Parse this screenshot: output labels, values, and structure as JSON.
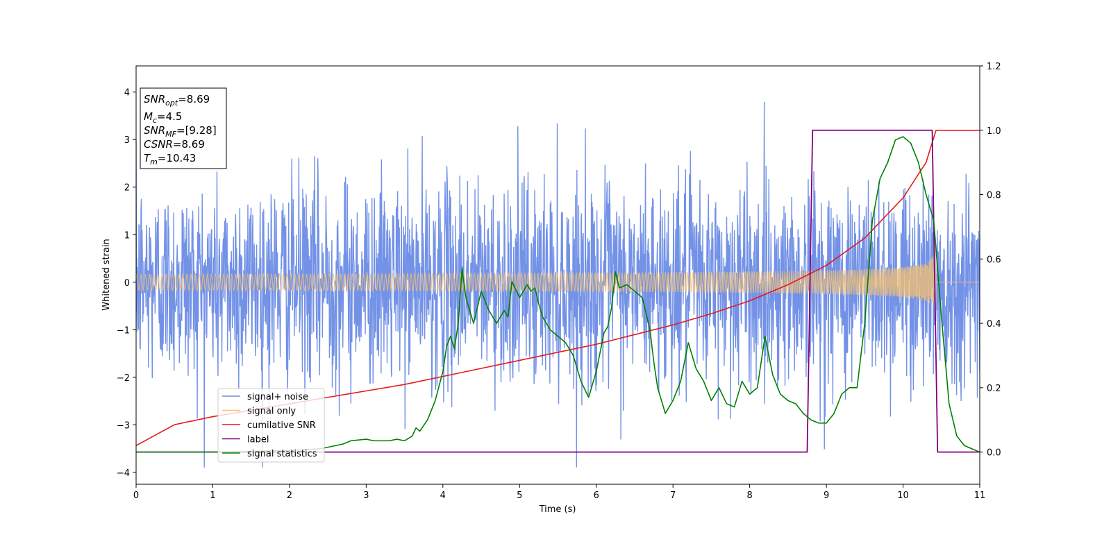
{
  "chart_data": {
    "type": "line",
    "xlabel": "Time (s)",
    "ylabel": "Whitened strain",
    "ylabel_right": "",
    "xlim": [
      0,
      11
    ],
    "ylim_left": [
      -4.25,
      4.55
    ],
    "ylim_right": [
      -0.1,
      1.2
    ],
    "xticks": [
      "0",
      "1",
      "2",
      "3",
      "4",
      "5",
      "6",
      "7",
      "8",
      "9",
      "10",
      "11"
    ],
    "yticks_left": [
      "−4",
      "−3",
      "−2",
      "−1",
      "0",
      "1",
      "2",
      "3",
      "4"
    ],
    "yticks_right": [
      "0.0",
      "0.2",
      "0.4",
      "0.6",
      "0.8",
      "1.0",
      "1.2"
    ],
    "grid": false,
    "legend_placement": "lower-left",
    "info_box": {
      "line1": "=8.69",
      "snr_opt_value": "8.69",
      "mc_value": "4.5",
      "snr_mf_value": "[9.28]",
      "csnr_value": "8.69",
      "tm_value": "10.43"
    },
    "series": [
      {
        "name": "signal+ noise",
        "color": "#6c8ce6",
        "axis": "left",
        "kind": "noise",
        "std": 1.05,
        "x_range": [
          0,
          11
        ],
        "approx_range": [
          -3.9,
          4.15
        ]
      },
      {
        "name": "signal only",
        "color": "#f5c070",
        "axis": "left",
        "kind": "chirp",
        "merger_time": 10.43,
        "start_amplitude": 0.04,
        "peak_amplitude": 0.95
      },
      {
        "name": "cumilative SNR",
        "color": "#e41a1c",
        "axis": "right",
        "x": [
          0,
          0.5,
          1,
          1.5,
          2,
          2.5,
          3,
          3.5,
          4,
          4.5,
          5,
          5.5,
          6,
          6.5,
          7,
          7.5,
          8,
          8.5,
          9,
          9.5,
          10,
          10.3,
          10.43,
          11
        ],
        "values": [
          0.02,
          0.085,
          0.11,
          0.13,
          0.15,
          0.17,
          0.19,
          0.21,
          0.235,
          0.26,
          0.285,
          0.31,
          0.335,
          0.365,
          0.395,
          0.43,
          0.47,
          0.52,
          0.58,
          0.665,
          0.79,
          0.9,
          1.0,
          1.0
        ]
      },
      {
        "name": "label",
        "color": "#800080",
        "axis": "right",
        "x": [
          0,
          8.75,
          8.82,
          10.38,
          10.45,
          11
        ],
        "values": [
          0,
          0,
          1,
          1,
          0,
          0
        ]
      },
      {
        "name": "signal statistics",
        "color": "#008000",
        "axis": "right",
        "x": [
          0,
          1,
          2,
          2.4,
          2.7,
          2.8,
          3.0,
          3.1,
          3.3,
          3.4,
          3.5,
          3.6,
          3.65,
          3.7,
          3.8,
          3.9,
          4.0,
          4.05,
          4.1,
          4.15,
          4.2,
          4.25,
          4.3,
          4.4,
          4.5,
          4.6,
          4.7,
          4.8,
          4.85,
          4.9,
          5.0,
          5.1,
          5.15,
          5.2,
          5.25,
          5.3,
          5.4,
          5.5,
          5.6,
          5.7,
          5.8,
          5.9,
          6.0,
          6.1,
          6.15,
          6.2,
          6.25,
          6.3,
          6.4,
          6.5,
          6.6,
          6.7,
          6.75,
          6.8,
          6.9,
          7.0,
          7.1,
          7.2,
          7.3,
          7.4,
          7.5,
          7.6,
          7.7,
          7.8,
          7.9,
          8.0,
          8.1,
          8.2,
          8.3,
          8.4,
          8.5,
          8.6,
          8.7,
          8.8,
          8.9,
          9.0,
          9.1,
          9.2,
          9.3,
          9.4,
          9.5,
          9.6,
          9.7,
          9.8,
          9.9,
          10.0,
          10.1,
          10.2,
          10.3,
          10.4,
          10.5,
          10.6,
          10.7,
          10.8,
          11
        ],
        "values": [
          0.0,
          0.0,
          0.005,
          0.01,
          0.025,
          0.035,
          0.04,
          0.035,
          0.035,
          0.04,
          0.035,
          0.05,
          0.075,
          0.065,
          0.1,
          0.16,
          0.25,
          0.33,
          0.36,
          0.32,
          0.4,
          0.57,
          0.48,
          0.4,
          0.5,
          0.44,
          0.4,
          0.44,
          0.42,
          0.53,
          0.48,
          0.52,
          0.5,
          0.51,
          0.46,
          0.42,
          0.38,
          0.36,
          0.34,
          0.3,
          0.22,
          0.17,
          0.25,
          0.37,
          0.39,
          0.45,
          0.56,
          0.51,
          0.52,
          0.5,
          0.48,
          0.38,
          0.28,
          0.2,
          0.12,
          0.16,
          0.22,
          0.34,
          0.26,
          0.22,
          0.16,
          0.2,
          0.15,
          0.14,
          0.22,
          0.18,
          0.2,
          0.36,
          0.24,
          0.18,
          0.16,
          0.15,
          0.12,
          0.1,
          0.09,
          0.09,
          0.12,
          0.18,
          0.2,
          0.2,
          0.4,
          0.72,
          0.85,
          0.9,
          0.97,
          0.98,
          0.96,
          0.9,
          0.8,
          0.72,
          0.42,
          0.15,
          0.05,
          0.02,
          0.0
        ]
      }
    ]
  }
}
